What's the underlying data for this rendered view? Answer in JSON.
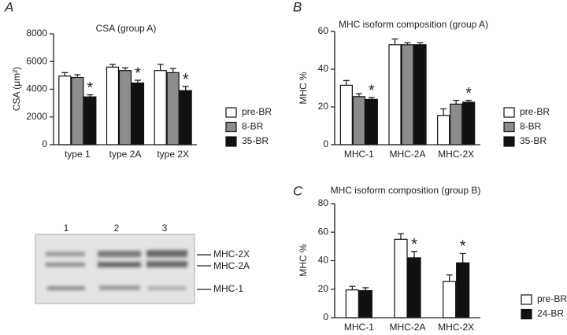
{
  "chart_data": [
    {
      "type": "bar",
      "panel_label": "A",
      "title": "CSA (group A)",
      "y_label": "CSA (μm²)",
      "categories": [
        "type 1",
        "type 2A",
        "type 2X"
      ],
      "series": [
        {
          "name": "pre-BR",
          "color": "#ffffff",
          "values": [
            4950,
            5600,
            5350
          ],
          "errors": [
            250,
            200,
            450
          ]
        },
        {
          "name": "8-BR",
          "color": "#8c8c8c",
          "values": [
            4850,
            5350,
            5200
          ],
          "errors": [
            200,
            200,
            300
          ]
        },
        {
          "name": "35-BR",
          "color": "#111111",
          "values": [
            3450,
            4450,
            3900
          ],
          "errors": [
            150,
            200,
            300
          ]
        }
      ],
      "annotations": [
        {
          "category": "type 1",
          "series": "35-BR",
          "text": "*"
        },
        {
          "category": "type 2A",
          "series": "35-BR",
          "text": "*"
        },
        {
          "category": "type 2X",
          "series": "35-BR",
          "text": "*"
        }
      ],
      "ylim": [
        0,
        8000
      ],
      "yticks": [
        0,
        2000,
        4000,
        6000,
        8000
      ]
    },
    {
      "type": "bar",
      "panel_label": "B",
      "title": "MHC isoform composition (group A)",
      "y_label": "MHC %",
      "categories": [
        "MHC-1",
        "MHC-2A",
        "MHC-2X"
      ],
      "series": [
        {
          "name": "pre-BR",
          "color": "#ffffff",
          "values": [
            31.5,
            53,
            15.5
          ],
          "errors": [
            2.5,
            3,
            3.5
          ]
        },
        {
          "name": "8-BR",
          "color": "#8c8c8c",
          "values": [
            25.5,
            53,
            21.5
          ],
          "errors": [
            1.5,
            1,
            2
          ]
        },
        {
          "name": "35-BR",
          "color": "#111111",
          "values": [
            24,
            53,
            22.5
          ],
          "errors": [
            1,
            1,
            1
          ]
        }
      ],
      "annotations": [
        {
          "category": "MHC-1",
          "series": "35-BR",
          "text": "*"
        },
        {
          "category": "MHC-2X",
          "series": "35-BR",
          "text": "*"
        }
      ],
      "ylim": [
        0,
        60
      ],
      "yticks": [
        0,
        20,
        40,
        60
      ]
    },
    {
      "type": "bar",
      "panel_label": "C",
      "title": "MHC isoform composition (group B)",
      "y_label": "MHC %",
      "categories": [
        "MHC-1",
        "MHC-2A",
        "MHC-2X"
      ],
      "series": [
        {
          "name": "pre-BR",
          "color": "#ffffff",
          "values": [
            19.5,
            55,
            25.5
          ],
          "errors": [
            2.5,
            4,
            4.5
          ]
        },
        {
          "name": "24-BR",
          "color": "#111111",
          "values": [
            19,
            42,
            38.5
          ],
          "errors": [
            2,
            4.5,
            6.5
          ]
        }
      ],
      "annotations": [
        {
          "category": "MHC-2A",
          "series": "24-BR",
          "text": "*"
        },
        {
          "category": "MHC-2X",
          "series": "24-BR",
          "text": "*"
        }
      ],
      "ylim": [
        0,
        80
      ],
      "yticks": [
        0,
        20,
        40,
        60,
        80
      ]
    }
  ],
  "gel": {
    "lane_labels": [
      "1",
      "2",
      "3"
    ],
    "band_labels": [
      "MHC-2X",
      "MHC-2A",
      "MHC-1"
    ]
  }
}
